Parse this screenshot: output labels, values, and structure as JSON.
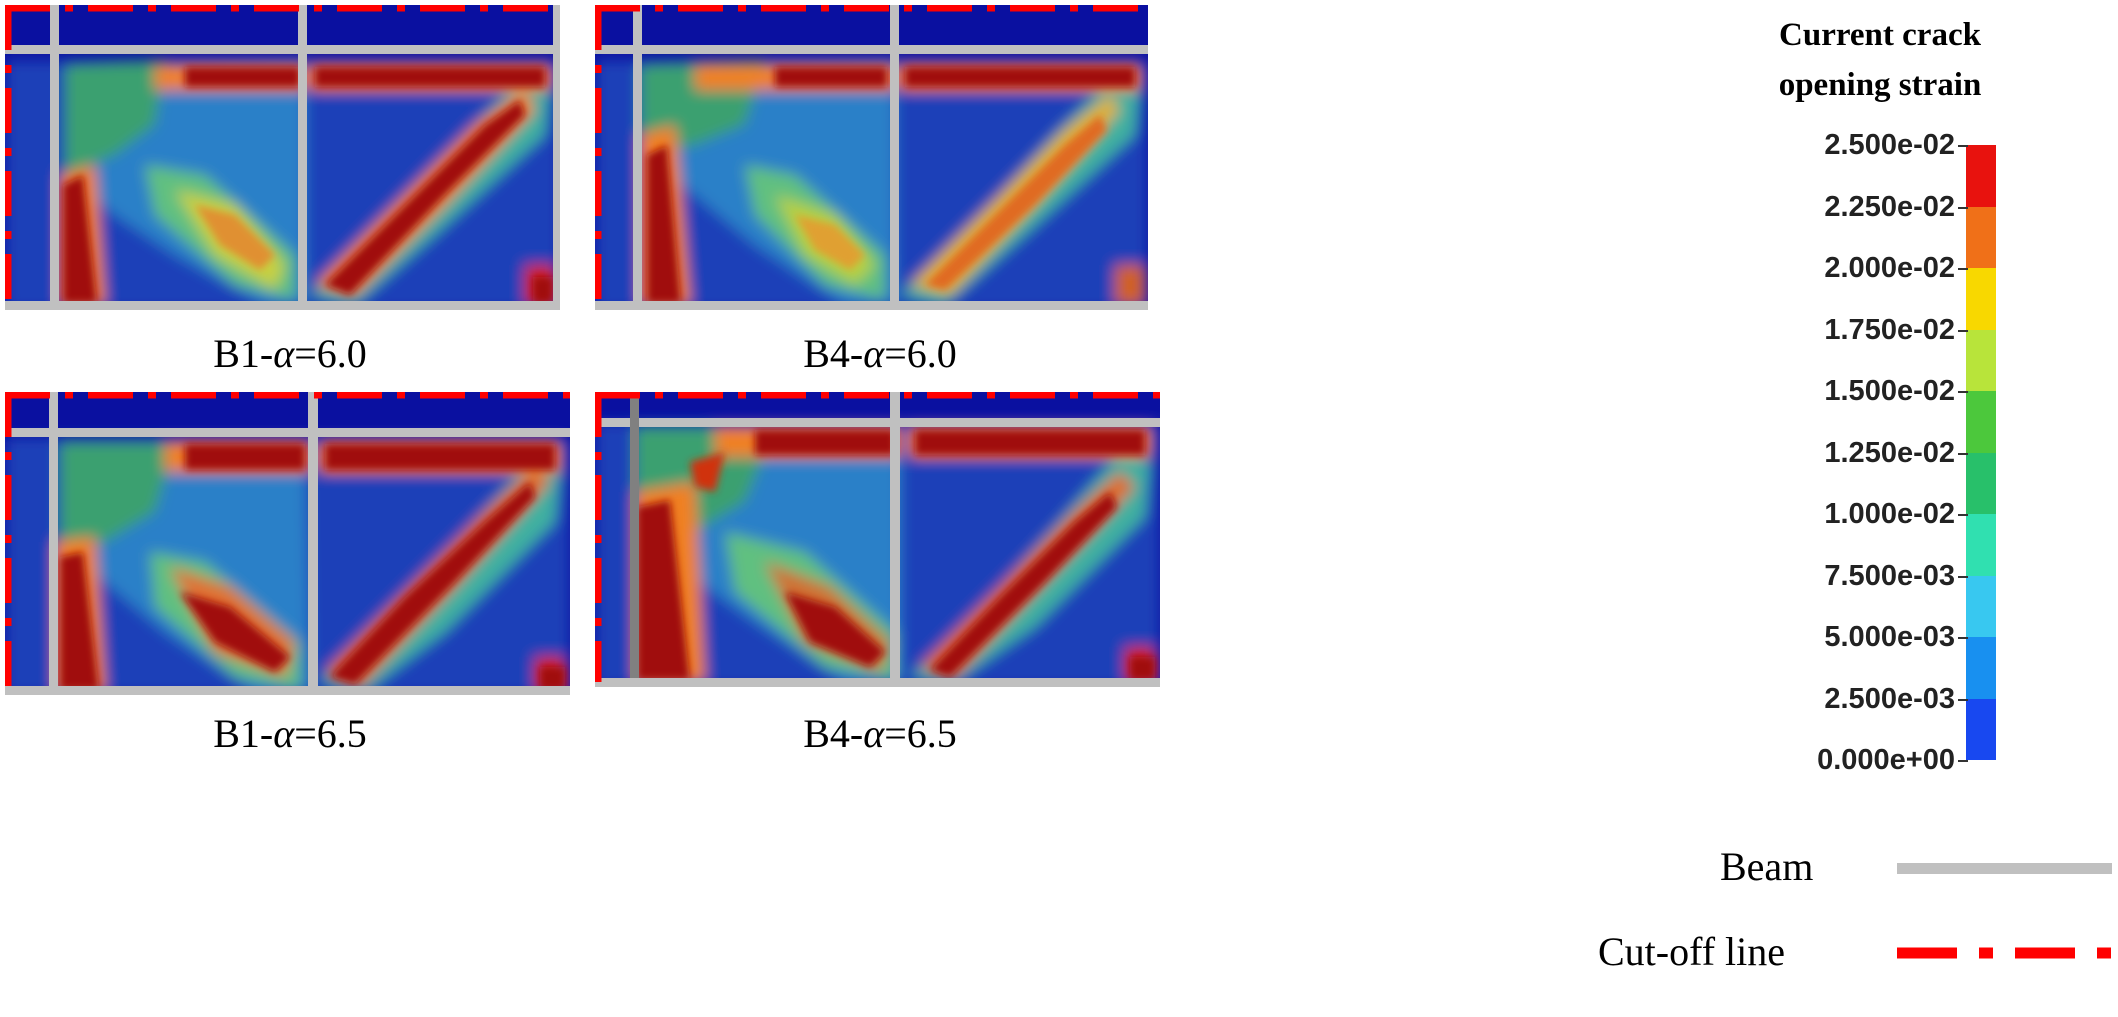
{
  "panels": [
    {
      "caption_prefix": "B1-",
      "caption_symbol": "α",
      "caption_suffix": "=6.0"
    },
    {
      "caption_prefix": "B4-",
      "caption_symbol": "α",
      "caption_suffix": "=6.0"
    },
    {
      "caption_prefix": "B1-",
      "caption_symbol": "α",
      "caption_suffix": "=6.5"
    },
    {
      "caption_prefix": "B4-",
      "caption_symbol": "α",
      "caption_suffix": "=6.5"
    }
  ],
  "legend": {
    "title_line1": "Current  crack",
    "title_line2": "opening  strain",
    "ticks": [
      "2.500e-02",
      "2.250e-02",
      "2.000e-02",
      "1.750e-02",
      "1.500e-02",
      "1.250e-02",
      "1.000e-02",
      "7.500e-03",
      "5.000e-03",
      "2.500e-03",
      "0.000e+00"
    ],
    "band_colors": [
      "#e8120e",
      "#f07018",
      "#f8d800",
      "#b8e43a",
      "#4cc83c",
      "#28c06a",
      "#30e0b0",
      "#38c8f0",
      "#1890f0",
      "#1848f0"
    ]
  },
  "key": {
    "beam_label": "Beam",
    "beam_color": "#c0c0c0",
    "cutoff_label": "Cut-off line",
    "cutoff_color": "#ff0000"
  },
  "colors": {
    "low": "#0a10a0",
    "high": "#a01008"
  }
}
